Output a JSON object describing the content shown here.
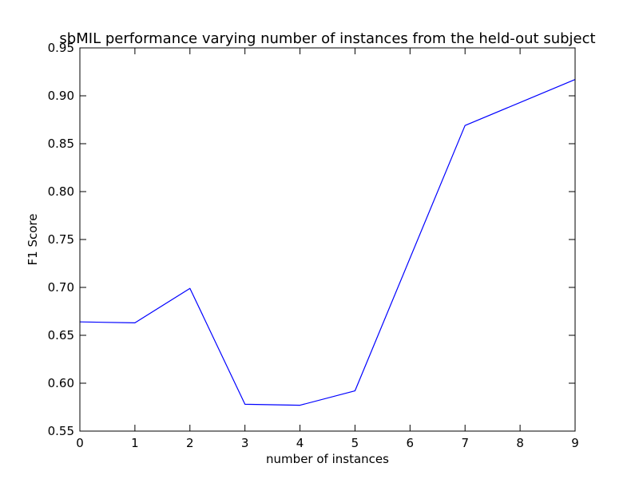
{
  "chart_data": {
    "type": "line",
    "title": "sbMIL performance varying number of instances from the held-out subject",
    "xlabel": "number of instances",
    "ylabel": "F1 Score",
    "xlim": [
      0,
      9
    ],
    "ylim": [
      0.55,
      0.95
    ],
    "grid": false,
    "x_ticks": [
      0,
      1,
      2,
      3,
      4,
      5,
      6,
      7,
      8,
      9
    ],
    "x_tick_labels": [
      "0",
      "1",
      "2",
      "3",
      "4",
      "5",
      "6",
      "7",
      "8",
      "9"
    ],
    "y_ticks": [
      0.55,
      0.6,
      0.65,
      0.7,
      0.75,
      0.8,
      0.85,
      0.9,
      0.95
    ],
    "y_tick_labels": [
      "0.55",
      "0.60",
      "0.65",
      "0.70",
      "0.75",
      "0.80",
      "0.85",
      "0.90",
      "0.95"
    ],
    "series": [
      {
        "color": "#0000ff",
        "x": [
          0,
          1,
          2,
          3,
          4,
          5,
          7,
          9
        ],
        "y": [
          0.664,
          0.663,
          0.699,
          0.578,
          0.577,
          0.592,
          0.869,
          0.917
        ]
      }
    ]
  }
}
